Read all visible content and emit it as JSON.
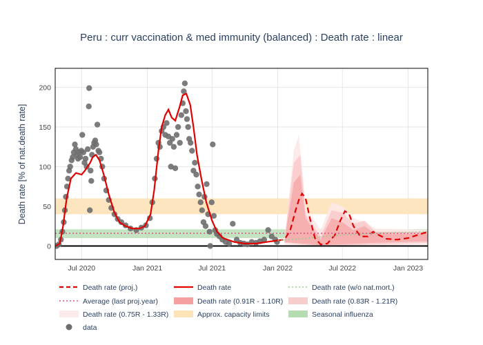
{
  "chart_data": {
    "type": "line",
    "title": "Peru : curr vaccination & med immunity (balanced) : Death rate : linear",
    "ylabel": "Death rate [% of nat.death rate]",
    "xlabel": "",
    "ylim": [
      -17,
      224
    ],
    "xlim": [
      "2020-04-18",
      "2023-02-25"
    ],
    "xticks": [
      {
        "date": "2020-07-01",
        "label": "Jul 2020"
      },
      {
        "date": "2021-01-01",
        "label": "Jan 2021"
      },
      {
        "date": "2021-07-01",
        "label": "Jul 2021"
      },
      {
        "date": "2022-01-01",
        "label": "Jan 2022"
      },
      {
        "date": "2022-07-01",
        "label": "Jul 2022"
      },
      {
        "date": "2023-01-01",
        "label": "Jan 2023"
      }
    ],
    "yticks": [
      0,
      50,
      100,
      150,
      200
    ],
    "grid": true,
    "legend_position": "bottom",
    "legend": [
      {
        "label": "Death rate (proj.)",
        "kind": "dash",
        "color": "#e00000"
      },
      {
        "label": "Death rate",
        "kind": "line",
        "color": "#e00000"
      },
      {
        "label": "Death rate (w/o nat.mort.)",
        "kind": "dot",
        "color": "#8fd18f"
      },
      {
        "label": "Average (last proj.year)",
        "kind": "dot",
        "color": "#e0508a"
      },
      {
        "label": "Death rate (0.91R - 1.10R)",
        "kind": "box",
        "color": "#f4a0a0"
      },
      {
        "label": "Death rate (0.83R - 1.21R)",
        "kind": "box",
        "color": "#f9cccc"
      },
      {
        "label": "Death rate (0.75R - 1.33R)",
        "kind": "box",
        "color": "#fdeaea"
      },
      {
        "label": "Approx. capacity limits",
        "kind": "box",
        "color": "#fde3b8"
      },
      {
        "label": "Seasonal influenza",
        "kind": "box",
        "color": "#b5dcb0"
      },
      {
        "label": "data",
        "kind": "marker",
        "color": "#6e6e6e"
      }
    ],
    "bands": {
      "capacity": [
        40,
        60
      ],
      "influenza": [
        10,
        21
      ]
    },
    "average_last_proj_year": 16,
    "series": [
      {
        "name": "Death rate",
        "points": [
          [
            "2020-04-20",
            0
          ],
          [
            "2020-05-01",
            3
          ],
          [
            "2020-05-10",
            25
          ],
          [
            "2020-05-20",
            60
          ],
          [
            "2020-06-01",
            85
          ],
          [
            "2020-06-15",
            92
          ],
          [
            "2020-07-01",
            90
          ],
          [
            "2020-07-10",
            95
          ],
          [
            "2020-07-25",
            105
          ],
          [
            "2020-08-01",
            112
          ],
          [
            "2020-08-10",
            115
          ],
          [
            "2020-08-20",
            108
          ],
          [
            "2020-09-01",
            90
          ],
          [
            "2020-09-15",
            65
          ],
          [
            "2020-10-01",
            42
          ],
          [
            "2020-10-15",
            30
          ],
          [
            "2020-11-01",
            25
          ],
          [
            "2020-11-20",
            22
          ],
          [
            "2020-12-10",
            22
          ],
          [
            "2020-12-25",
            25
          ],
          [
            "2021-01-10",
            40
          ],
          [
            "2021-01-20",
            70
          ],
          [
            "2021-02-01",
            120
          ],
          [
            "2021-02-10",
            150
          ],
          [
            "2021-02-20",
            165
          ],
          [
            "2021-03-01",
            172
          ],
          [
            "2021-03-10",
            162
          ],
          [
            "2021-03-20",
            158
          ],
          [
            "2021-04-01",
            175
          ],
          [
            "2021-04-10",
            190
          ],
          [
            "2021-04-20",
            192
          ],
          [
            "2021-05-01",
            178
          ],
          [
            "2021-05-10",
            150
          ],
          [
            "2021-05-20",
            115
          ],
          [
            "2021-06-01",
            85
          ],
          [
            "2021-06-15",
            55
          ],
          [
            "2021-07-01",
            32
          ],
          [
            "2021-07-15",
            18
          ],
          [
            "2021-08-01",
            10
          ],
          [
            "2021-09-01",
            5
          ],
          [
            "2021-10-01",
            3
          ],
          [
            "2021-11-01",
            3
          ],
          [
            "2021-12-01",
            5
          ],
          [
            "2022-01-01",
            7
          ]
        ]
      },
      {
        "name": "Death rate (proj.)",
        "points": [
          [
            "2022-01-01",
            7
          ],
          [
            "2022-01-20",
            8
          ],
          [
            "2022-02-05",
            20
          ],
          [
            "2022-02-20",
            45
          ],
          [
            "2022-03-01",
            58
          ],
          [
            "2022-03-10",
            66
          ],
          [
            "2022-03-20",
            60
          ],
          [
            "2022-04-01",
            35
          ],
          [
            "2022-04-15",
            10
          ],
          [
            "2022-05-01",
            2
          ],
          [
            "2022-05-20",
            3
          ],
          [
            "2022-06-10",
            14
          ],
          [
            "2022-06-25",
            32
          ],
          [
            "2022-07-08",
            44
          ],
          [
            "2022-07-20",
            40
          ],
          [
            "2022-08-01",
            25
          ],
          [
            "2022-08-20",
            12
          ],
          [
            "2022-09-10",
            12
          ],
          [
            "2022-09-25",
            18
          ],
          [
            "2022-10-10",
            14
          ],
          [
            "2022-11-01",
            9
          ],
          [
            "2022-12-01",
            8
          ],
          [
            "2023-01-01",
            10
          ],
          [
            "2023-02-25",
            18
          ]
        ]
      },
      {
        "name": "Death rate (w/o nat.mort.)",
        "points": [
          [
            "2022-01-01",
            7
          ],
          [
            "2022-04-01",
            10
          ],
          [
            "2022-07-01",
            14
          ],
          [
            "2022-10-01",
            16
          ],
          [
            "2023-02-25",
            18
          ]
        ]
      }
    ],
    "uncertainty_bands": [
      {
        "name": "Death rate (0.75R - 1.33R)",
        "upper": [
          [
            "2022-01-20",
            8
          ],
          [
            "2022-02-15",
            120
          ],
          [
            "2022-03-01",
            140
          ],
          [
            "2022-03-20",
            50
          ],
          [
            "2022-05-01",
            20
          ],
          [
            "2022-06-01",
            55
          ],
          [
            "2022-07-01",
            50
          ],
          [
            "2022-08-01",
            35
          ],
          [
            "2022-09-01",
            30
          ],
          [
            "2022-10-01",
            22
          ],
          [
            "2023-02-25",
            20
          ]
        ],
        "lower": [
          [
            "2023-02-25",
            2
          ],
          [
            "2022-10-01",
            0
          ],
          [
            "2022-05-01",
            0
          ],
          [
            "2022-01-20",
            2
          ]
        ]
      },
      {
        "name": "Death rate (0.83R - 1.21R)",
        "upper": [
          [
            "2022-01-20",
            8
          ],
          [
            "2022-02-15",
            105
          ],
          [
            "2022-03-05",
            115
          ],
          [
            "2022-03-20",
            40
          ],
          [
            "2022-05-01",
            12
          ],
          [
            "2022-06-01",
            45
          ],
          [
            "2022-07-01",
            42
          ],
          [
            "2022-08-01",
            28
          ],
          [
            "2022-09-01",
            32
          ],
          [
            "2022-10-01",
            18
          ],
          [
            "2023-02-25",
            18
          ]
        ],
        "lower": [
          [
            "2023-02-25",
            4
          ],
          [
            "2022-10-01",
            2
          ],
          [
            "2022-05-01",
            0
          ],
          [
            "2022-01-20",
            4
          ]
        ]
      },
      {
        "name": "Death rate (0.91R - 1.10R)",
        "upper": [
          [
            "2022-01-20",
            8
          ],
          [
            "2022-02-15",
            80
          ],
          [
            "2022-03-05",
            90
          ],
          [
            "2022-03-20",
            35
          ],
          [
            "2022-05-01",
            8
          ],
          [
            "2022-06-01",
            35
          ],
          [
            "2022-07-01",
            30
          ],
          [
            "2022-08-01",
            20
          ],
          [
            "2022-09-01",
            25
          ],
          [
            "2022-10-01",
            15
          ],
          [
            "2023-02-25",
            16
          ]
        ],
        "lower": [
          [
            "2023-02-25",
            6
          ],
          [
            "2022-10-01",
            4
          ],
          [
            "2022-05-01",
            1
          ],
          [
            "2022-01-20",
            5
          ]
        ]
      }
    ],
    "data_points": [
      [
        "2020-04-22",
        0
      ],
      [
        "2020-04-28",
        2
      ],
      [
        "2020-05-04",
        8
      ],
      [
        "2020-05-08",
        18
      ],
      [
        "2020-05-12",
        30
      ],
      [
        "2020-05-15",
        45
      ],
      [
        "2020-05-18",
        62
      ],
      [
        "2020-05-21",
        75
      ],
      [
        "2020-05-24",
        85
      ],
      [
        "2020-05-27",
        95
      ],
      [
        "2020-05-30",
        100
      ],
      [
        "2020-06-03",
        108
      ],
      [
        "2020-06-06",
        112
      ],
      [
        "2020-06-09",
        118
      ],
      [
        "2020-06-12",
        128
      ],
      [
        "2020-06-15",
        122
      ],
      [
        "2020-06-18",
        115
      ],
      [
        "2020-06-21",
        110
      ],
      [
        "2020-06-24",
        118
      ],
      [
        "2020-06-27",
        112
      ],
      [
        "2020-06-30",
        120
      ],
      [
        "2020-07-03",
        140
      ],
      [
        "2020-07-06",
        118
      ],
      [
        "2020-07-09",
        105
      ],
      [
        "2020-07-12",
        110
      ],
      [
        "2020-07-15",
        100
      ],
      [
        "2020-07-18",
        122
      ],
      [
        "2020-07-21",
        176
      ],
      [
        "2020-07-22",
        199
      ],
      [
        "2020-07-24",
        45
      ],
      [
        "2020-07-26",
        95
      ],
      [
        "2020-07-28",
        82
      ],
      [
        "2020-07-30",
        115
      ],
      [
        "2020-08-02",
        125
      ],
      [
        "2020-08-05",
        130
      ],
      [
        "2020-08-08",
        133
      ],
      [
        "2020-08-11",
        128
      ],
      [
        "2020-08-14",
        153
      ],
      [
        "2020-08-17",
        120
      ],
      [
        "2020-08-20",
        118
      ],
      [
        "2020-08-24",
        110
      ],
      [
        "2020-08-28",
        100
      ],
      [
        "2020-09-02",
        85
      ],
      [
        "2020-09-08",
        70
      ],
      [
        "2020-09-15",
        58
      ],
      [
        "2020-09-22",
        48
      ],
      [
        "2020-10-01",
        40
      ],
      [
        "2020-10-10",
        34
      ],
      [
        "2020-10-20",
        30
      ],
      [
        "2020-11-01",
        26
      ],
      [
        "2020-11-15",
        22
      ],
      [
        "2020-12-01",
        20
      ],
      [
        "2020-12-15",
        23
      ],
      [
        "2020-12-28",
        26
      ],
      [
        "2021-01-08",
        35
      ],
      [
        "2021-01-15",
        55
      ],
      [
        "2021-01-22",
        85
      ],
      [
        "2021-01-27",
        110
      ],
      [
        "2021-02-01",
        130
      ],
      [
        "2021-02-05",
        125
      ],
      [
        "2021-02-10",
        145
      ],
      [
        "2021-02-15",
        150
      ],
      [
        "2021-02-20",
        140
      ],
      [
        "2021-02-24",
        155
      ],
      [
        "2021-03-01",
        138
      ],
      [
        "2021-03-05",
        130
      ],
      [
        "2021-03-08",
        100
      ],
      [
        "2021-03-12",
        135
      ],
      [
        "2021-03-16",
        125
      ],
      [
        "2021-03-20",
        98
      ],
      [
        "2021-03-24",
        140
      ],
      [
        "2021-03-28",
        150
      ],
      [
        "2021-04-02",
        130
      ],
      [
        "2021-04-06",
        165
      ],
      [
        "2021-04-10",
        180
      ],
      [
        "2021-04-13",
        195
      ],
      [
        "2021-04-16",
        205
      ],
      [
        "2021-04-19",
        170
      ],
      [
        "2021-04-22",
        160
      ],
      [
        "2021-04-25",
        150
      ],
      [
        "2021-04-28",
        135
      ],
      [
        "2021-05-02",
        130
      ],
      [
        "2021-05-06",
        120
      ],
      [
        "2021-05-10",
        95
      ],
      [
        "2021-05-14",
        105
      ],
      [
        "2021-05-18",
        90
      ],
      [
        "2021-05-22",
        75
      ],
      [
        "2021-05-26",
        65
      ],
      [
        "2021-05-30",
        55
      ],
      [
        "2021-06-03",
        45
      ],
      [
        "2021-06-07",
        30
      ],
      [
        "2021-06-10",
        62
      ],
      [
        "2021-06-13",
        25
      ],
      [
        "2021-06-16",
        78
      ],
      [
        "2021-06-20",
        40
      ],
      [
        "2021-06-24",
        18
      ],
      [
        "2021-06-26",
        0
      ],
      [
        "2021-06-30",
        55
      ],
      [
        "2021-07-03",
        128
      ],
      [
        "2021-07-06",
        38
      ],
      [
        "2021-07-10",
        20
      ],
      [
        "2021-07-15",
        15
      ],
      [
        "2021-07-22",
        12
      ],
      [
        "2021-07-30",
        8
      ],
      [
        "2021-08-08",
        5
      ],
      [
        "2021-08-18",
        3
      ],
      [
        "2021-08-28",
        28
      ],
      [
        "2021-09-08",
        8
      ],
      [
        "2021-09-18",
        4
      ],
      [
        "2021-09-28",
        3
      ],
      [
        "2021-10-08",
        2
      ],
      [
        "2021-10-20",
        5
      ],
      [
        "2021-11-01",
        4
      ],
      [
        "2021-11-12",
        6
      ],
      [
        "2021-11-24",
        8
      ],
      [
        "2021-12-05",
        20
      ],
      [
        "2021-12-15",
        12
      ],
      [
        "2021-12-25",
        8
      ],
      [
        "2021-12-30",
        5
      ]
    ]
  }
}
